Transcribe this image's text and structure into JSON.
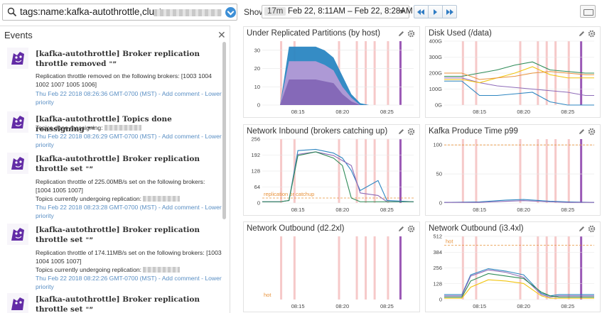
{
  "search": {
    "query": "tags:name:kafka-autothrottle,cluster:"
  },
  "toolbar": {
    "show_label": "Show",
    "duration": "17m",
    "range": "Feb 22, 8:11AM – Feb 22, 8:28AM"
  },
  "events": {
    "title": "Events",
    "items": [
      {
        "title": "[kafka-autothrottle] Broker replication throttle removed",
        "body": "Replication throttle removed on the following brokers: [1003 1004 1002 1007 1005 1006]",
        "meta": "Thu Feb 22 2018 08:26:36 GMT-0700 (MST) - Add comment - Lower priority"
      },
      {
        "title": "[kafka-autothrottle] Topics done reassigning",
        "body": "Topics done reassigning:",
        "meta": "Thu Feb 22 2018 08:26:29 GMT-0700 (MST) - Add comment - Lower priority"
      },
      {
        "title": "[kafka-autothrottle] Broker replication throttle set",
        "body": "Replication throttle of 225.00MB/s set on the following brokers: [1004 1005 1007]",
        "body2": "Topics currently undergoing replication:",
        "meta": "Thu Feb 22 2018 08:23:28 GMT-0700 (MST) - Add comment - Lower priority"
      },
      {
        "title": "[kafka-autothrottle] Broker replication throttle set",
        "body": "Replication throttle of 174.11MB/s set on the following brokers: [1003 1004 1005 1007]",
        "body2": "Topics currently undergoing replication:",
        "meta": "Thu Feb 22 2018 08:22:26 GMT-0700 (MST) - Add comment - Lower priority"
      },
      {
        "title": "[kafka-autothrottle] Broker replication throttle set",
        "body": "",
        "meta": ""
      }
    ]
  },
  "panels": [
    {
      "title": "Under Replicated Partitions (by host)",
      "yticks": [
        "30",
        "20",
        "10",
        "0"
      ]
    },
    {
      "title": "Disk Used (/data)",
      "yticks": [
        "400G",
        "300G",
        "200G",
        "100G",
        "0G"
      ]
    },
    {
      "title": "Network Inbound (brokers catching up)",
      "yticks": [
        "256",
        "192",
        "128",
        "64",
        "0"
      ],
      "annotation": "replication or catchup"
    },
    {
      "title": "Kafka Produce Time p99",
      "yticks": [
        "100",
        "50",
        "0"
      ]
    },
    {
      "title": "Network Outbound (d2.2xl)",
      "yticks": [],
      "annotation": "hot"
    },
    {
      "title": "Network Outbound (i3.4xl)",
      "yticks": [
        "512",
        "384",
        "256",
        "128",
        "0"
      ],
      "annotation": "hot"
    }
  ],
  "xticks": [
    "08:15",
    "08:20",
    "08:25"
  ],
  "colors": {
    "accent": "#2f7cc4",
    "event_marker": "#f6c9c9",
    "deploy_marker": "#9b59b6",
    "blue": "#2e86c1",
    "purple": "#8e6bb8",
    "green": "#2e8b57",
    "yellow": "#f1c40f",
    "orange": "#e8923a"
  },
  "chart_data": [
    {
      "type": "area",
      "title": "Under Replicated Partitions (by host)",
      "x": [
        "08:13",
        "08:14",
        "08:15",
        "08:16",
        "08:17",
        "08:18",
        "08:19",
        "08:20",
        "08:21",
        "08:22",
        "08:23"
      ],
      "ylim": [
        0,
        35
      ],
      "series": [
        {
          "values": [
            0,
            32,
            32,
            32,
            32,
            30,
            26,
            16,
            6,
            1,
            0
          ]
        },
        {
          "values": [
            0,
            24,
            24,
            24,
            24,
            22,
            19,
            10,
            4,
            0,
            0
          ]
        },
        {
          "values": [
            0,
            14,
            14,
            14,
            14,
            13,
            12,
            6,
            2,
            0,
            0
          ]
        }
      ]
    },
    {
      "type": "line",
      "title": "Disk Used (/data)",
      "x": [
        "08:11",
        "08:13",
        "08:15",
        "08:17",
        "08:19",
        "08:21",
        "08:23",
        "08:25",
        "08:27",
        "08:28"
      ],
      "ylim": [
        0,
        400
      ],
      "series": [
        {
          "values": [
            150,
            150,
            60,
            60,
            70,
            80,
            20,
            0,
            0,
            0
          ]
        },
        {
          "values": [
            170,
            170,
            140,
            120,
            110,
            100,
            90,
            80,
            60,
            60
          ]
        },
        {
          "values": [
            180,
            180,
            200,
            220,
            250,
            270,
            220,
            210,
            200,
            200
          ]
        },
        {
          "values": [
            160,
            160,
            140,
            170,
            200,
            240,
            190,
            170,
            170,
            170
          ]
        },
        {
          "values": [
            200,
            200,
            160,
            170,
            180,
            200,
            210,
            200,
            190,
            190
          ]
        }
      ]
    },
    {
      "type": "line",
      "title": "Network Inbound (brokers catching up)",
      "x": [
        "08:11",
        "08:13",
        "08:14",
        "08:15",
        "08:17",
        "08:19",
        "08:20",
        "08:21",
        "08:22",
        "08:24",
        "08:25",
        "08:28"
      ],
      "ylim": [
        0,
        256
      ],
      "series": [
        {
          "values": [
            5,
            5,
            10,
            210,
            215,
            200,
            180,
            130,
            50,
            90,
            10,
            5
          ]
        },
        {
          "values": [
            5,
            5,
            10,
            195,
            205,
            190,
            170,
            150,
            40,
            30,
            5,
            5
          ]
        },
        {
          "values": [
            5,
            5,
            10,
            190,
            205,
            180,
            150,
            20,
            5,
            5,
            5,
            5
          ]
        }
      ]
    },
    {
      "type": "line",
      "title": "Kafka Produce Time p99",
      "x": [
        "08:11",
        "08:15",
        "08:18",
        "08:20",
        "08:23",
        "08:25",
        "08:28"
      ],
      "ylim": [
        0,
        110
      ],
      "series": [
        {
          "values": [
            1,
            2,
            5,
            6,
            3,
            2,
            1
          ]
        },
        {
          "values": [
            1,
            1,
            3,
            4,
            2,
            1,
            1
          ]
        }
      ]
    },
    {
      "type": "line",
      "title": "Network Outbound (d2.2xl)",
      "x": [
        "08:11",
        "08:28"
      ],
      "series": []
    },
    {
      "type": "line",
      "title": "Network Outbound (i3.4xl)",
      "x": [
        "08:11",
        "08:13",
        "08:14",
        "08:16",
        "08:18",
        "08:20",
        "08:22",
        "08:23",
        "08:24",
        "08:26",
        "08:28"
      ],
      "ylim": [
        0,
        512
      ],
      "series": [
        {
          "values": [
            40,
            40,
            200,
            250,
            230,
            200,
            50,
            30,
            40,
            40,
            40
          ]
        },
        {
          "values": [
            30,
            30,
            190,
            240,
            220,
            180,
            40,
            20,
            30,
            30,
            30
          ]
        },
        {
          "values": [
            20,
            20,
            150,
            210,
            190,
            170,
            60,
            30,
            20,
            20,
            20
          ]
        },
        {
          "values": [
            10,
            10,
            100,
            160,
            150,
            130,
            30,
            10,
            10,
            10,
            10
          ]
        }
      ]
    }
  ]
}
